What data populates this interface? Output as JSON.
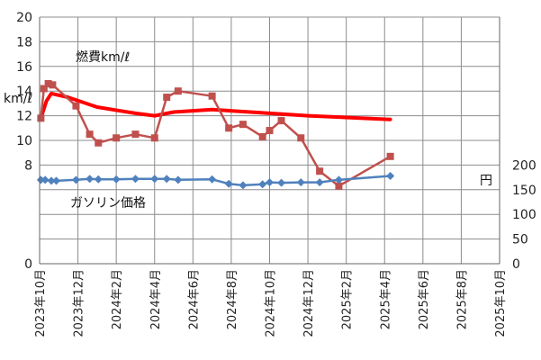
{
  "chart_data": {
    "type": "line",
    "x_ticks": [
      "2023年10月",
      "2023年12月",
      "2024年2月",
      "2024年4月",
      "2024年6月",
      "2024年8月",
      "2024年10月",
      "2024年12月",
      "2025年2月",
      "2025年4月",
      "2025年6月",
      "2025年8月",
      "2025年10月"
    ],
    "left_axis": {
      "label": "km/ℓ",
      "ylim": [
        0,
        20
      ],
      "ticks": [
        "0",
        "8",
        "10",
        "12",
        "14",
        "16",
        "18",
        "20"
      ]
    },
    "right_axis": {
      "label": "円",
      "ylim": [
        0,
        500
      ],
      "ticks": [
        "0",
        "50",
        "100",
        "150",
        "200"
      ]
    },
    "grid": true,
    "series": [
      {
        "name": "燃費km/ℓ",
        "axis": "left",
        "color": "#C0504D",
        "marker": "square",
        "points": [
          [
            "2023-10-03",
            11.8
          ],
          [
            "2023-10-08",
            14.2
          ],
          [
            "2023-10-15",
            14.6
          ],
          [
            "2023-10-22",
            14.5
          ],
          [
            "2023-11-28",
            12.8
          ],
          [
            "2023-12-20",
            10.5
          ],
          [
            "2024-01-03",
            9.8
          ],
          [
            "2024-02-01",
            10.2
          ],
          [
            "2024-03-01",
            10.5
          ],
          [
            "2024-04-01",
            10.2
          ],
          [
            "2024-04-20",
            13.5
          ],
          [
            "2024-05-08",
            14.0
          ],
          [
            "2024-07-01",
            13.6
          ],
          [
            "2024-07-28",
            11.0
          ],
          [
            "2024-08-20",
            11.3
          ],
          [
            "2024-09-20",
            10.3
          ],
          [
            "2024-10-01",
            10.8
          ],
          [
            "2024-10-20",
            11.6
          ],
          [
            "2024-11-20",
            10.2
          ],
          [
            "2024-12-20",
            7.5
          ],
          [
            "2025-01-20",
            6.3
          ],
          [
            "2025-04-10",
            8.7
          ]
        ]
      },
      {
        "name": "ガソリン価格",
        "axis": "right",
        "color": "#4F81BD",
        "marker": "diamond",
        "points": [
          [
            "2023-10-03",
            170
          ],
          [
            "2023-10-10",
            170
          ],
          [
            "2023-10-20",
            168
          ],
          [
            "2023-10-28",
            168
          ],
          [
            "2023-11-28",
            170
          ],
          [
            "2023-12-20",
            172
          ],
          [
            "2024-01-03",
            171
          ],
          [
            "2024-02-01",
            171
          ],
          [
            "2024-03-01",
            172
          ],
          [
            "2024-04-01",
            172
          ],
          [
            "2024-04-20",
            172
          ],
          [
            "2024-05-08",
            170
          ],
          [
            "2024-07-01",
            171
          ],
          [
            "2024-07-28",
            162
          ],
          [
            "2024-08-20",
            159
          ],
          [
            "2024-09-20",
            161
          ],
          [
            "2024-10-01",
            165
          ],
          [
            "2024-10-20",
            164
          ],
          [
            "2024-11-20",
            165
          ],
          [
            "2024-12-20",
            165
          ],
          [
            "2025-01-20",
            170
          ],
          [
            "2025-04-10",
            178
          ]
        ]
      },
      {
        "name": "",
        "axis": "left",
        "color": "#FF0000",
        "marker": "none",
        "points": [
          [
            "2023-10-03",
            11.8
          ],
          [
            "2023-10-12",
            13.2
          ],
          [
            "2023-10-20",
            13.8
          ],
          [
            "2023-11-15",
            13.5
          ],
          [
            "2024-01-01",
            12.7
          ],
          [
            "2024-03-01",
            12.2
          ],
          [
            "2024-04-01",
            12.0
          ],
          [
            "2024-05-01",
            12.3
          ],
          [
            "2024-07-01",
            12.5
          ],
          [
            "2024-09-01",
            12.3
          ],
          [
            "2024-12-01",
            12.0
          ],
          [
            "2025-04-10",
            11.7
          ]
        ]
      }
    ],
    "annotations": [
      "燃費km/ℓ",
      "ガソリン価格"
    ]
  }
}
